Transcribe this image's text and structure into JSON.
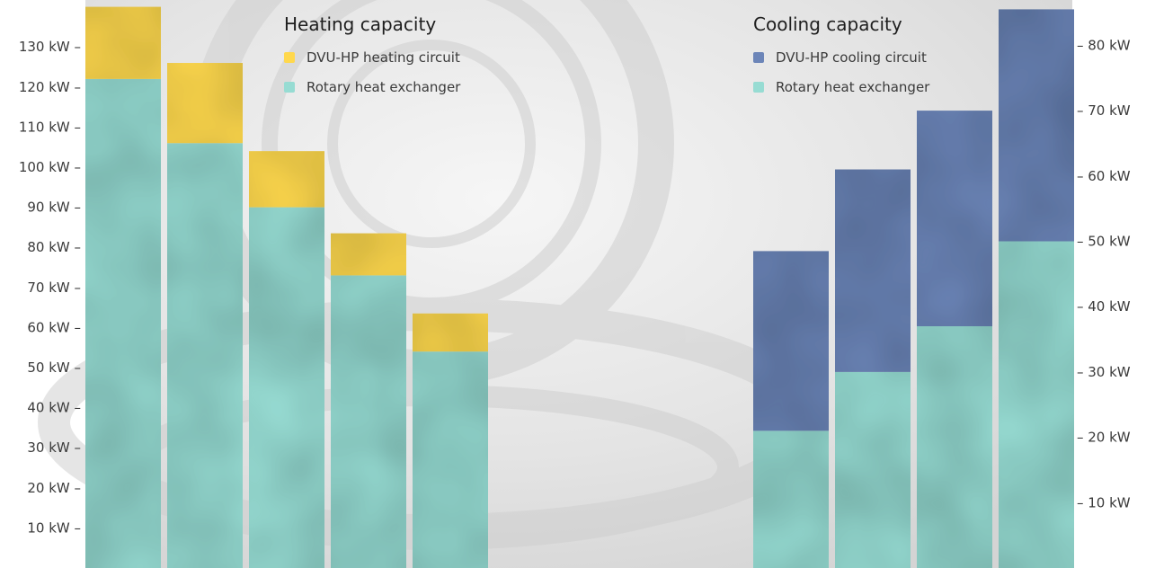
{
  "chart_data": [
    {
      "type": "bar",
      "stacked": true,
      "title": "Heating capacity",
      "y_axis": {
        "side": "left",
        "ticks": [
          10,
          20,
          30,
          40,
          50,
          60,
          70,
          80,
          90,
          100,
          110,
          120,
          130
        ],
        "tick_labels": [
          "10 kW –",
          "20 kW –",
          "30 kW –",
          "40 kW –",
          "50 kW –",
          "60 kW –",
          "70 kW –",
          "80 kW –",
          "90 kW –",
          "100 kW –",
          "110 kW –",
          "120 kW –",
          "130 kW –"
        ],
        "unit": "kW",
        "ylim": [
          0,
          140
        ]
      },
      "categories": [
        "",
        "",
        "",
        "",
        ""
      ],
      "series": [
        {
          "name": "Rotary heat exchanger",
          "color": "#97dcd3",
          "values": [
            122,
            106,
            90,
            73,
            54
          ]
        },
        {
          "name": "DVU-HP heating circuit",
          "color": "#ffd84d",
          "values": [
            18,
            20,
            14,
            10.5,
            9.5
          ]
        }
      ],
      "legend": {
        "placement": "top"
      }
    },
    {
      "type": "bar",
      "stacked": true,
      "title": "Cooling capacity",
      "y_axis": {
        "side": "right",
        "ticks": [
          10,
          20,
          30,
          40,
          50,
          60,
          70,
          80
        ],
        "tick_labels": [
          "– 10 kW",
          "– 20 kW",
          "– 30 kW",
          "– 40 kW",
          "– 50 kW",
          "– 60 kW",
          "– 70 kW",
          "– 80 kW"
        ],
        "unit": "kW",
        "ylim": [
          0,
          85.5
        ]
      },
      "categories": [
        "",
        "",
        "",
        ""
      ],
      "series": [
        {
          "name": "Rotary heat exchanger",
          "color": "#97dcd3",
          "values": [
            21,
            30,
            37,
            50
          ]
        },
        {
          "name": "DVU-HP cooling circuit",
          "color": "#6c85b8",
          "values": [
            27.5,
            31,
            33,
            35.5
          ]
        }
      ],
      "legend": {
        "placement": "top"
      }
    }
  ]
}
